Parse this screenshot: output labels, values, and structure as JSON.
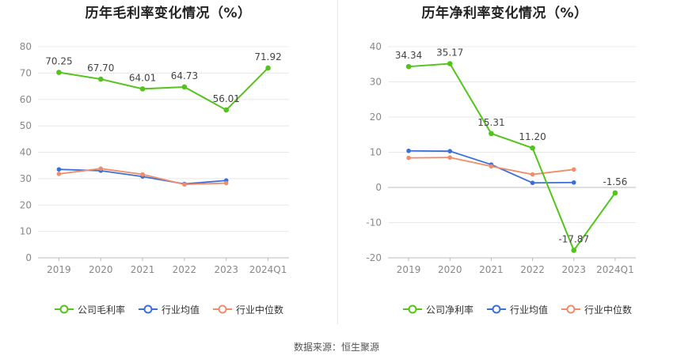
{
  "source_note": "数据来源：恒生聚源",
  "colors": {
    "company": "#52c41a",
    "industry_avg": "#3b6fd8",
    "industry_median": "#f08c6a"
  },
  "chart_data": [
    {
      "type": "line",
      "title": "历年毛利率变化情况（%）",
      "categories": [
        "2019",
        "2020",
        "2021",
        "2022",
        "2023",
        "2024Q1"
      ],
      "ylim": [
        0,
        80
      ],
      "yticks": [
        "0",
        "10",
        "20",
        "30",
        "40",
        "50",
        "60",
        "70",
        "80"
      ],
      "ytick_values": [
        0,
        10,
        20,
        30,
        40,
        50,
        60,
        70,
        80
      ],
      "grid": true,
      "legend": "bottom",
      "series": [
        {
          "name": "公司毛利率",
          "values": [
            70.25,
            67.7,
            64.01,
            64.73,
            56.01,
            71.92
          ],
          "labels": [
            "70.25",
            "67.70",
            "64.01",
            "64.73",
            "56.01",
            "71.92"
          ]
        },
        {
          "name": "行业均值",
          "values": [
            33.5,
            33.0,
            30.8,
            28.0,
            29.3,
            null
          ]
        },
        {
          "name": "行业中位数",
          "values": [
            31.8,
            33.8,
            31.6,
            27.8,
            28.3,
            null
          ]
        }
      ]
    },
    {
      "type": "line",
      "title": "历年净利率变化情况（%）",
      "categories": [
        "2019",
        "2020",
        "2021",
        "2022",
        "2023",
        "2024Q1"
      ],
      "ylim": [
        -20,
        40
      ],
      "yticks": [
        "-20",
        "-10",
        "0",
        "10",
        "20",
        "30",
        "40"
      ],
      "ytick_values": [
        -20,
        -10,
        0,
        10,
        20,
        30,
        40
      ],
      "grid": true,
      "legend": "bottom",
      "series": [
        {
          "name": "公司净利率",
          "values": [
            34.34,
            35.17,
            15.31,
            11.2,
            -17.87,
            -1.56
          ],
          "labels": [
            "34.34",
            "35.17",
            "15.31",
            "11.20",
            "-17.87",
            "-1.56"
          ]
        },
        {
          "name": "行业均值",
          "values": [
            10.4,
            10.3,
            6.5,
            1.3,
            1.4,
            null
          ]
        },
        {
          "name": "行业中位数",
          "values": [
            8.4,
            8.5,
            6.0,
            3.7,
            5.1,
            null
          ]
        }
      ]
    }
  ]
}
